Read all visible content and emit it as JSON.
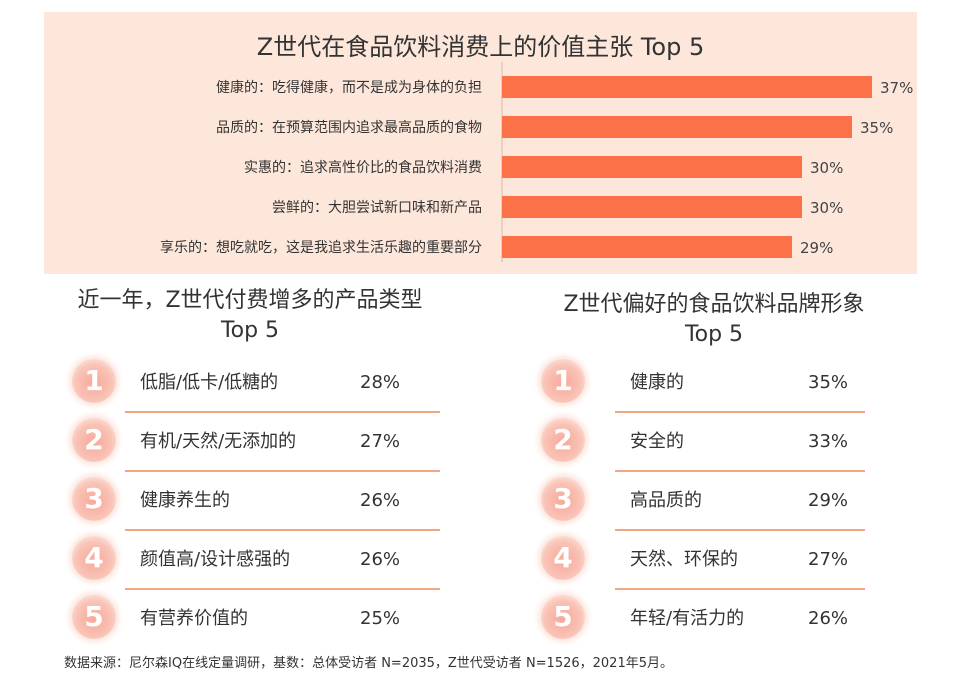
{
  "chart_data": [
    {
      "type": "bar",
      "orientation": "horizontal",
      "title": "Z世代在食品饮料消费上的价值主张 Top 5",
      "categories": [
        "健康的：吃得健康，而不是成为身体的负担",
        "品质的：在预算范围内追求最高品质的食物",
        "实惠的：追求高性价比的食品饮料消费",
        "尝鲜的：大胆尝试新口味和新产品",
        "享乐的：想吃就吃，这是我追求生活乐趣的重要部分"
      ],
      "values": [
        37,
        35,
        30,
        30,
        29
      ],
      "value_labels": [
        "37%",
        "35%",
        "30%",
        "30%",
        "29%"
      ],
      "unit": "%",
      "xlim": [
        0,
        40
      ],
      "bar_color": "#fb7248",
      "background_color": "#fde7da"
    },
    {
      "type": "table",
      "title": "近一年，Z世代付费增多的产品类型 Top 5",
      "title_line1": "近一年，Z世代付费增多的产品类型",
      "title_line2": "Top 5",
      "rows": [
        {
          "rank": "1",
          "label": "低脂/低卡/低糖的",
          "value": "28%"
        },
        {
          "rank": "2",
          "label": "有机/天然/无添加的",
          "value": "27%"
        },
        {
          "rank": "3",
          "label": "健康养生的",
          "value": "26%"
        },
        {
          "rank": "4",
          "label": "颜值高/设计感强的",
          "value": "26%"
        },
        {
          "rank": "5",
          "label": "有营养价值的",
          "value": "25%"
        }
      ]
    },
    {
      "type": "table",
      "title": "Z世代偏好的食品饮料品牌形象 Top 5",
      "title_line1": "Z世代偏好的食品饮料品牌形象",
      "title_line2": "Top 5",
      "rows": [
        {
          "rank": "1",
          "label": "健康的",
          "value": "35%"
        },
        {
          "rank": "2",
          "label": "安全的",
          "value": "33%"
        },
        {
          "rank": "3",
          "label": "高品质的",
          "value": "29%"
        },
        {
          "rank": "4",
          "label": "天然、环保的",
          "value": "27%"
        },
        {
          "rank": "5",
          "label": "年轻/有活力的",
          "value": "26%"
        }
      ]
    }
  ],
  "footnote": "数据来源：尼尔森IQ在线定量调研，基数：总体受访者 N=2035，Z世代受访者 N=1526，2021年5月。",
  "colors": {
    "accent": "#fb7248",
    "panel_background": "#fde7da",
    "badge": "#f9b8a8",
    "divider": "#f4a582"
  }
}
